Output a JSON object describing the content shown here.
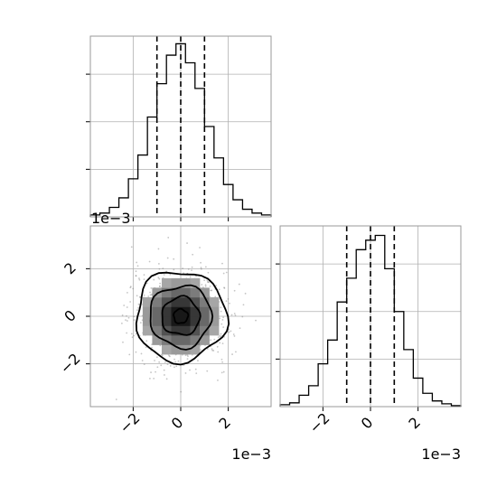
{
  "chart_data": [
    {
      "type": "histogram",
      "panel": "marginal-x",
      "xlim": [
        -0.0038,
        0.0038
      ],
      "bin_edges_x": [
        -0.0038,
        -0.0034,
        -0.003,
        -0.0026,
        -0.0022,
        -0.0018,
        -0.0014,
        -0.001,
        -0.0006,
        -0.0002,
        0.0002,
        0.0006,
        0.001,
        0.0014,
        0.0018,
        0.0022,
        0.0026,
        0.003,
        0.0034,
        0.0038
      ],
      "counts": [
        2,
        4,
        10,
        20,
        40,
        65,
        105,
        140,
        170,
        182,
        162,
        135,
        95,
        62,
        34,
        18,
        8,
        4,
        2
      ],
      "ylim": [
        0,
        190
      ],
      "quantile_lines_x": [
        -0.001,
        0.0,
        0.001
      ],
      "grid": true,
      "offset_text": "1e−3"
    },
    {
      "type": "scatter-density-contour",
      "panel": "joint",
      "xlim": [
        -0.0038,
        0.0038
      ],
      "ylim": [
        -0.0038,
        0.0038
      ],
      "xticks": [
        "−2",
        "0",
        "2"
      ],
      "yticks": [
        "−2",
        "0",
        "2"
      ],
      "xtick_values": [
        -0.002,
        0.0,
        0.002
      ],
      "ytick_values": [
        -0.002,
        0.0,
        0.002
      ],
      "center": [
        0.0,
        0.0
      ],
      "sigma": 0.001,
      "contour_levels_radius": [
        0.0003,
        0.0008,
        0.0013,
        0.0019
      ],
      "grid": true,
      "x_offset_text": "1e−3"
    },
    {
      "type": "histogram",
      "panel": "marginal-y",
      "xlim": [
        -0.0038,
        0.0038
      ],
      "bin_edges_x": [
        -0.0038,
        -0.0034,
        -0.003,
        -0.0026,
        -0.0022,
        -0.0018,
        -0.0014,
        -0.001,
        -0.0006,
        -0.0002,
        0.0002,
        0.0006,
        0.001,
        0.0014,
        0.0018,
        0.0022,
        0.0026,
        0.003,
        0.0034,
        0.0038
      ],
      "counts": [
        2,
        4,
        12,
        22,
        45,
        70,
        110,
        135,
        165,
        175,
        180,
        145,
        100,
        60,
        30,
        14,
        6,
        3,
        1
      ],
      "ylim": [
        0,
        190
      ],
      "xticks": [
        "−2",
        "0",
        "2"
      ],
      "xtick_values": [
        -0.002,
        0.0,
        0.002
      ],
      "quantile_lines_x": [
        -0.001,
        0.0,
        0.001
      ],
      "grid": true,
      "offset_text": "1e−3"
    }
  ],
  "colors": {
    "line": "#000000",
    "grid": "#b0b0b0",
    "frame": "#9a9a9a",
    "scatter": "#7f7f7f"
  }
}
